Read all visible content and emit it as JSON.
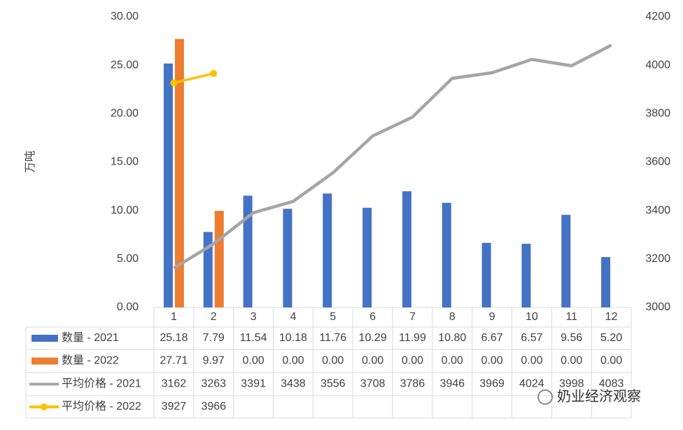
{
  "chart_data": {
    "type": "bar",
    "y_label": "万吨",
    "categories": [
      "1",
      "2",
      "3",
      "4",
      "5",
      "6",
      "7",
      "8",
      "9",
      "10",
      "11",
      "12"
    ],
    "series": [
      {
        "name": "数量 - 2021",
        "type": "bar",
        "color": "#4472c4",
        "values": [
          25.18,
          7.79,
          11.54,
          10.18,
          11.76,
          10.29,
          11.99,
          10.8,
          6.67,
          6.57,
          9.56,
          5.2
        ],
        "value_labels": [
          "25.18",
          "7.79",
          "11.54",
          "10.18",
          "11.76",
          "10.29",
          "11.99",
          "10.80",
          "6.67",
          "6.57",
          "9.56",
          "5.20"
        ]
      },
      {
        "name": "数量 - 2022",
        "type": "bar",
        "color": "#ed7d31",
        "values": [
          27.71,
          9.97,
          0,
          0,
          0,
          0,
          0,
          0,
          0,
          0,
          0,
          0
        ],
        "value_labels": [
          "27.71",
          "9.97",
          "0.00",
          "0.00",
          "0.00",
          "0.00",
          "0.00",
          "0.00",
          "0.00",
          "0.00",
          "0.00",
          "0.00"
        ]
      },
      {
        "name": "平均价格 - 2021",
        "type": "line",
        "axis": "y2",
        "color": "#a5a5a5",
        "values": [
          3162,
          3263,
          3391,
          3438,
          3556,
          3708,
          3786,
          3946,
          3969,
          4024,
          3998,
          4083
        ]
      },
      {
        "name": "平均价格 - 2022",
        "type": "line",
        "axis": "y2",
        "color": "#ffc000",
        "marker": true,
        "values": [
          3927,
          3966,
          null,
          null,
          null,
          null,
          null,
          null,
          null,
          null,
          null,
          null
        ]
      }
    ],
    "ylim": [
      0,
      30
    ],
    "yticks": [
      {
        "value": 0,
        "label": "0.00"
      },
      {
        "value": 5,
        "label": "5.00"
      },
      {
        "value": 10,
        "label": "10.00"
      },
      {
        "value": 15,
        "label": "15.00"
      },
      {
        "value": 20,
        "label": "20.00"
      },
      {
        "value": 25,
        "label": "25.00"
      },
      {
        "value": 30,
        "label": "30.00"
      }
    ],
    "y2lim": [
      3000,
      4200
    ],
    "y2ticks": [
      3000,
      3200,
      3400,
      3600,
      3800,
      4000,
      4200
    ],
    "watermark": "奶业经济观察"
  }
}
